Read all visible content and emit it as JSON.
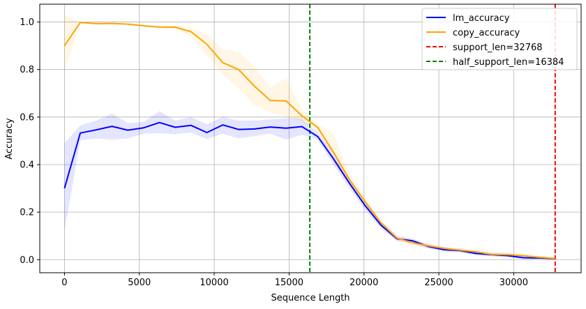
{
  "chart_data": {
    "type": "line",
    "title": "",
    "xlabel": "Sequence Length",
    "ylabel": "Accuracy",
    "xlim": [
      -1650,
      34500
    ],
    "ylim": [
      -0.055,
      1.075
    ],
    "grid": true,
    "legend_position": "top-right",
    "x_ticks": [
      0,
      5000,
      10000,
      15000,
      20000,
      25000,
      30000
    ],
    "x_tick_labels": [
      "0",
      "5000",
      "10000",
      "15000",
      "20000",
      "25000",
      "30000"
    ],
    "y_ticks": [
      0.0,
      0.2,
      0.4,
      0.6,
      0.8,
      1.0
    ],
    "y_tick_labels": [
      "0.0",
      "0.2",
      "0.4",
      "0.6",
      "0.8",
      "1.0"
    ],
    "x": [
      0,
      1057,
      2114,
      3171,
      4228,
      5285,
      6342,
      7399,
      8456,
      9513,
      10570,
      11627,
      12684,
      13741,
      14798,
      15855,
      16912,
      17969,
      19026,
      20083,
      21140,
      22197,
      23254,
      24311,
      25368,
      26425,
      27482,
      28539,
      29596,
      30653,
      31710,
      32768
    ],
    "series": [
      {
        "name": "lm_accuracy",
        "color": "#0000ff",
        "values": [
          0.3,
          0.533,
          0.546,
          0.561,
          0.545,
          0.555,
          0.577,
          0.557,
          0.565,
          0.535,
          0.567,
          0.548,
          0.55,
          0.558,
          0.553,
          0.56,
          0.518,
          0.424,
          0.322,
          0.227,
          0.145,
          0.088,
          0.079,
          0.055,
          0.042,
          0.038,
          0.026,
          0.021,
          0.017,
          0.008,
          0.007,
          0.004
        ],
        "lower": [
          0.12,
          0.502,
          0.51,
          0.505,
          0.51,
          0.53,
          0.532,
          0.528,
          0.535,
          0.508,
          0.53,
          0.51,
          0.52,
          0.53,
          0.505,
          0.525,
          0.505,
          0.4,
          0.3,
          0.21,
          0.13,
          0.078,
          0.068,
          0.045,
          0.034,
          0.03,
          0.018,
          0.014,
          0.01,
          0.002,
          0.001,
          0.0
        ],
        "upper": [
          0.49,
          0.565,
          0.585,
          0.615,
          0.575,
          0.58,
          0.625,
          0.585,
          0.6,
          0.57,
          0.6,
          0.585,
          0.585,
          0.59,
          0.595,
          0.595,
          0.535,
          0.45,
          0.345,
          0.245,
          0.16,
          0.1,
          0.09,
          0.065,
          0.052,
          0.046,
          0.034,
          0.03,
          0.026,
          0.016,
          0.013,
          0.01
        ]
      },
      {
        "name": "copy_accuracy",
        "color": "#ffa500",
        "values": [
          0.9,
          0.998,
          0.993,
          0.994,
          0.991,
          0.984,
          0.979,
          0.978,
          0.959,
          0.906,
          0.829,
          0.8,
          0.73,
          0.67,
          0.668,
          0.605,
          0.556,
          0.452,
          0.337,
          0.243,
          0.155,
          0.091,
          0.071,
          0.058,
          0.047,
          0.04,
          0.033,
          0.022,
          0.021,
          0.017,
          0.01,
          0.005
        ],
        "lower": [
          0.79,
          0.995,
          0.99,
          0.99,
          0.988,
          0.98,
          0.975,
          0.97,
          0.94,
          0.86,
          0.78,
          0.72,
          0.65,
          0.62,
          0.6,
          0.58,
          0.54,
          0.41,
          0.315,
          0.225,
          0.14,
          0.08,
          0.06,
          0.05,
          0.04,
          0.032,
          0.026,
          0.014,
          0.012,
          0.008,
          0.003,
          0.0
        ],
        "upper": [
          1.03,
          1.0,
          0.997,
          0.998,
          0.995,
          0.99,
          0.985,
          0.985,
          0.975,
          0.95,
          0.885,
          0.875,
          0.81,
          0.725,
          0.765,
          0.63,
          0.57,
          0.53,
          0.36,
          0.262,
          0.17,
          0.1,
          0.08,
          0.066,
          0.055,
          0.048,
          0.04,
          0.03,
          0.03,
          0.026,
          0.018,
          0.01
        ]
      }
    ],
    "vlines": [
      {
        "name": "support_len=32768",
        "x": 32768,
        "color": "#ff0000"
      },
      {
        "name": "half_support_len=16384",
        "x": 16384,
        "color": "#008000"
      }
    ],
    "legend": [
      "lm_accuracy",
      "copy_accuracy",
      "support_len=32768",
      "half_support_len=16384"
    ]
  }
}
